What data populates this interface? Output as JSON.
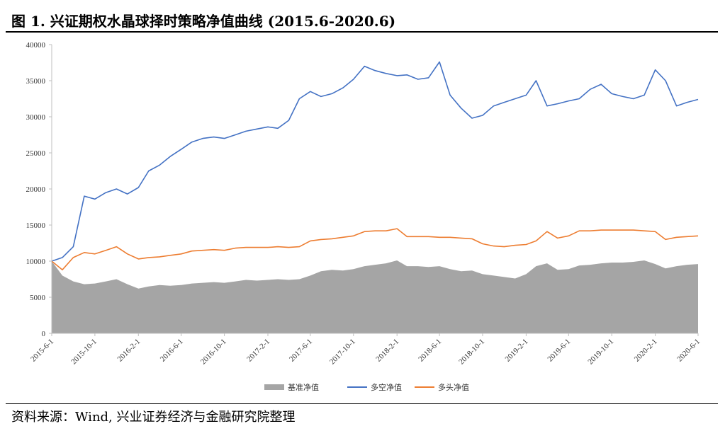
{
  "header": {
    "title": "图 1. 兴证期权水晶球择时策略净值曲线 (2015.6-2020.6)"
  },
  "footer": {
    "source": "资料来源：Wind, 兴业证券经济与金融研究院整理"
  },
  "colors": {
    "benchmark": "#a5a5a5",
    "long_short": "#4472c4",
    "long_only": "#ed7d31",
    "axis": "#bfbfbf"
  },
  "chart_data": {
    "type": "line",
    "title": "",
    "xlabel": "",
    "ylabel": "",
    "ylim": [
      0,
      40000
    ],
    "y_ticks": [
      0,
      5000,
      10000,
      15000,
      20000,
      25000,
      30000,
      35000,
      40000
    ],
    "x_tick_labels": [
      "2015-6-1",
      "2015-10-1",
      "2016-2-1",
      "2016-6-1",
      "2016-10-1",
      "2017-2-1",
      "2017-6-1",
      "2017-10-1",
      "2018-2-1",
      "2018-6-1",
      "2018-10-1",
      "2019-2-1",
      "2019-6-1",
      "2019-10-1",
      "2020-2-1",
      "2020-6-1"
    ],
    "grid": false,
    "legend_position": "bottom",
    "x_dates": [
      "2015-6-1",
      "2015-7-1",
      "2015-8-1",
      "2015-9-1",
      "2015-10-1",
      "2015-11-1",
      "2015-12-1",
      "2016-1-1",
      "2016-2-1",
      "2016-3-1",
      "2016-4-1",
      "2016-5-1",
      "2016-6-1",
      "2016-7-1",
      "2016-8-1",
      "2016-9-1",
      "2016-10-1",
      "2016-11-1",
      "2016-12-1",
      "2017-1-1",
      "2017-2-1",
      "2017-3-1",
      "2017-4-1",
      "2017-5-1",
      "2017-6-1",
      "2017-7-1",
      "2017-8-1",
      "2017-9-1",
      "2017-10-1",
      "2017-11-1",
      "2017-12-1",
      "2018-1-1",
      "2018-2-1",
      "2018-3-1",
      "2018-4-1",
      "2018-5-1",
      "2018-6-1",
      "2018-7-1",
      "2018-8-1",
      "2018-9-1",
      "2018-10-1",
      "2018-11-1",
      "2018-12-1",
      "2019-1-1",
      "2019-2-1",
      "2019-3-1",
      "2019-4-1",
      "2019-5-1",
      "2019-6-1",
      "2019-7-1",
      "2019-8-1",
      "2019-9-1",
      "2019-10-1",
      "2019-11-1",
      "2019-12-1",
      "2020-1-1",
      "2020-2-1",
      "2020-3-1",
      "2020-4-1",
      "2020-5-1",
      "2020-6-1"
    ],
    "series": [
      {
        "name": "基准净值",
        "kind": "area",
        "values": [
          10000,
          8000,
          7200,
          6800,
          6900,
          7200,
          7500,
          6800,
          6200,
          6500,
          6700,
          6600,
          6700,
          6900,
          7000,
          7100,
          7000,
          7200,
          7400,
          7300,
          7400,
          7500,
          7400,
          7500,
          8000,
          8600,
          8800,
          8700,
          8900,
          9300,
          9500,
          9700,
          10100,
          9300,
          9300,
          9200,
          9300,
          8900,
          8600,
          8700,
          8200,
          8000,
          7800,
          7600,
          8200,
          9300,
          9700,
          8800,
          8900,
          9400,
          9500,
          9700,
          9800,
          9800,
          9900,
          10100,
          9600,
          9000,
          9300,
          9500,
          9600
        ]
      },
      {
        "name": "多空净值",
        "kind": "line",
        "values": [
          10000,
          10500,
          12000,
          19000,
          18600,
          19500,
          20000,
          19300,
          20200,
          22500,
          23300,
          24500,
          25500,
          26500,
          27000,
          27200,
          27000,
          27500,
          28000,
          28300,
          28600,
          28400,
          29500,
          32500,
          33500,
          32800,
          33200,
          34000,
          35200,
          37000,
          36400,
          36000,
          35700,
          35800,
          35200,
          35400,
          37600,
          33000,
          31200,
          29800,
          30200,
          31500,
          32000,
          32500,
          33000,
          35000,
          31500,
          31800,
          32200,
          32500,
          33800,
          34500,
          33200,
          32800,
          32500,
          33000,
          36500,
          35000,
          31500,
          32000,
          32400
        ]
      },
      {
        "name": "多头净值",
        "kind": "line",
        "values": [
          10000,
          8800,
          10500,
          11200,
          11000,
          11500,
          12000,
          11000,
          10300,
          10500,
          10600,
          10800,
          11000,
          11400,
          11500,
          11600,
          11500,
          11800,
          11900,
          11900,
          11900,
          12000,
          11900,
          12000,
          12800,
          13000,
          13100,
          13300,
          13500,
          14100,
          14200,
          14200,
          14500,
          13400,
          13400,
          13400,
          13300,
          13300,
          13200,
          13100,
          12400,
          12100,
          12000,
          12200,
          12300,
          12800,
          14100,
          13200,
          13500,
          14200,
          14200,
          14300,
          14300,
          14300,
          14300,
          14200,
          14100,
          13000,
          13300,
          13400,
          13500
        ]
      }
    ]
  }
}
